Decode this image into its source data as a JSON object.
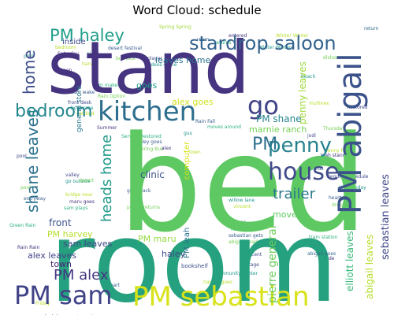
{
  "chart_data": {
    "type": "word_cloud",
    "title": "Word Cloud: schedule",
    "colormap": [
      "#440154",
      "#31688e",
      "#35b779",
      "#fde725"
    ],
    "words": [
      {
        "text": "bed",
        "weight": 1.0,
        "color": "#5ec962"
      },
      {
        "text": "room",
        "weight": 0.97,
        "color": "#26a17f"
      },
      {
        "text": "stand",
        "weight": 0.9,
        "color": "#463480"
      },
      {
        "text": "kitchen",
        "weight": 0.55,
        "color": "#2e6e8e"
      },
      {
        "text": "PM abigail",
        "weight": 0.5,
        "color": "#3b528b"
      },
      {
        "text": "PM sebastian",
        "weight": 0.48,
        "color": "#d8e219"
      },
      {
        "text": "stardrop saloon",
        "weight": 0.42,
        "color": "#33638d"
      },
      {
        "text": "house",
        "weight": 0.45,
        "color": "#3e4a89"
      },
      {
        "text": "penny",
        "weight": 0.42,
        "color": "#26828e"
      },
      {
        "text": "PM sam",
        "weight": 0.4,
        "color": "#404387"
      },
      {
        "text": "go",
        "weight": 0.42,
        "color": "#414487"
      },
      {
        "text": "PM haley",
        "weight": 0.36,
        "color": "#1f9e89"
      },
      {
        "text": "shane leaves",
        "weight": 0.36,
        "color": "#2c728e"
      },
      {
        "text": "bedroom",
        "weight": 0.34,
        "color": "#24878e"
      },
      {
        "text": "home",
        "weight": 0.32,
        "color": "#3d4d8a"
      },
      {
        "text": "trailer",
        "weight": 0.3,
        "color": "#2a788e"
      },
      {
        "text": "heads home",
        "weight": 0.3,
        "color": "#1f9a8a"
      },
      {
        "text": "PM",
        "weight": 0.45,
        "color": "#2d708e"
      },
      {
        "text": "PM alex",
        "weight": 0.3,
        "color": "#453781"
      },
      {
        "text": "sebastian leaves",
        "weight": 0.24,
        "color": "#3f4788"
      },
      {
        "text": "pierre general",
        "weight": 0.24,
        "color": "#6ccd5a"
      },
      {
        "text": "penny leaves",
        "weight": 0.22,
        "color": "#9fda3a"
      },
      {
        "text": "abigail leaves",
        "weight": 0.2,
        "color": "#b5de2b"
      },
      {
        "text": "elliott leaves",
        "weight": 0.2,
        "color": "#37b878"
      },
      {
        "text": "PM shane",
        "weight": 0.2,
        "color": "#25858e"
      },
      {
        "text": "leaves home",
        "weight": 0.2,
        "color": "#2c728e"
      },
      {
        "text": "alex goes",
        "weight": 0.22,
        "color": "#d0e11c"
      },
      {
        "text": "marnie ranch",
        "weight": 0.2,
        "color": "#73d056"
      },
      {
        "text": "PM harvey",
        "weight": 0.2,
        "color": "#b5de2b"
      },
      {
        "text": "PM maru",
        "weight": 0.2,
        "color": "#95d840"
      },
      {
        "text": "alex leaves",
        "weight": 0.2,
        "color": "#414487"
      },
      {
        "text": "sam leaves",
        "weight": 0.2,
        "color": "#3f4788"
      },
      {
        "text": "clinic",
        "weight": 0.2,
        "color": "#3b528b"
      },
      {
        "text": "moves",
        "weight": 0.2,
        "color": "#5ec962"
      },
      {
        "text": "haley",
        "weight": 0.2,
        "color": "#3e4a89"
      },
      {
        "text": "town",
        "weight": 0.2,
        "color": "#482475"
      },
      {
        "text": "front",
        "weight": 0.2,
        "color": "#3b528b"
      },
      {
        "text": "goes",
        "weight": 0.2,
        "color": "#1f9e89"
      },
      {
        "text": "general store",
        "weight": 0.18,
        "color": "#2a788e"
      },
      {
        "text": "inside",
        "weight": 0.18,
        "color": "#3e4989"
      },
      {
        "text": "computer",
        "weight": 0.18,
        "color": "#d8e219"
      },
      {
        "text": "PM leah",
        "weight": 0.18,
        "color": "#2c728e"
      },
      {
        "text": "bookshelf",
        "weight": 0.1,
        "color": "#3b528b"
      },
      {
        "text": "Spring Spring",
        "weight": 0.08,
        "color": "#a0da39"
      },
      {
        "text": "abigail goes",
        "weight": 0.08,
        "color": "#31688e"
      },
      {
        "text": "return",
        "weight": 0.08,
        "color": "#31688e"
      }
    ]
  }
}
